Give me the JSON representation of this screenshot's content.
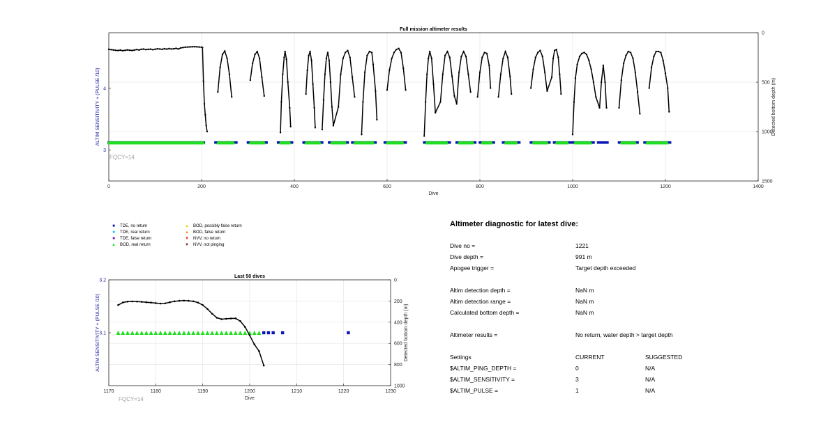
{
  "chart_data": [
    {
      "type": "scatter",
      "title": "Full mission altimeter results",
      "xlabel": "Dive",
      "ylabel_left": "ALTIM SENSITIVITY + (PULSE /10)",
      "ylabel_right": "Detected bottom depth (m)",
      "annotation": "FQCY=14",
      "xlim": [
        0,
        1400
      ],
      "ylim_left": [
        2.5,
        4.9
      ],
      "ylim_right": [
        1500,
        0
      ],
      "xticks": [
        0,
        200,
        400,
        600,
        800,
        1000,
        1200,
        1400
      ],
      "yticks_left": [
        3,
        4
      ],
      "yticks_right": [
        0,
        500,
        1000,
        1500
      ],
      "grid": true,
      "bottom_depth_trace": [
        [
          0,
          168
        ],
        [
          5,
          172
        ],
        [
          10,
          175
        ],
        [
          15,
          178
        ],
        [
          20,
          180
        ],
        [
          25,
          176
        ],
        [
          30,
          182
        ],
        [
          35,
          178
        ],
        [
          40,
          174
        ],
        [
          45,
          177
        ],
        [
          50,
          180
        ],
        [
          55,
          176
        ],
        [
          60,
          170
        ],
        [
          65,
          175
        ],
        [
          70,
          168
        ],
        [
          75,
          165
        ],
        [
          80,
          171
        ],
        [
          85,
          168
        ],
        [
          90,
          166
        ],
        [
          95,
          172
        ],
        [
          100,
          167
        ],
        [
          105,
          163
        ],
        [
          110,
          165
        ],
        [
          115,
          168
        ],
        [
          120,
          162
        ],
        [
          125,
          166
        ],
        [
          130,
          161
        ],
        [
          135,
          165
        ],
        [
          140,
          163
        ],
        [
          145,
          158
        ],
        [
          150,
          165
        ],
        [
          155,
          154
        ],
        [
          160,
          150
        ],
        [
          165,
          146
        ],
        [
          170,
          145
        ],
        [
          175,
          144
        ],
        [
          180,
          142
        ],
        [
          185,
          142
        ],
        [
          190,
          143
        ],
        [
          195,
          145
        ],
        [
          200,
          146
        ],
        [
          202,
          150
        ],
        [
          204,
          490
        ],
        [
          206,
          720
        ],
        [
          208,
          830
        ],
        [
          210,
          940
        ],
        [
          212,
          1000
        ],
        [
          235,
          600
        ],
        [
          240,
          350
        ],
        [
          245,
          220
        ],
        [
          250,
          185
        ],
        [
          255,
          260
        ],
        [
          260,
          420
        ],
        [
          265,
          650
        ],
        [
          305,
          480
        ],
        [
          310,
          310
        ],
        [
          315,
          220
        ],
        [
          320,
          190
        ],
        [
          325,
          260
        ],
        [
          330,
          450
        ],
        [
          335,
          640
        ],
        [
          370,
          1010
        ],
        [
          372,
          700
        ],
        [
          375,
          420
        ],
        [
          378,
          250
        ],
        [
          380,
          190
        ],
        [
          383,
          270
        ],
        [
          386,
          500
        ],
        [
          390,
          760
        ],
        [
          392,
          950
        ],
        [
          425,
          620
        ],
        [
          428,
          380
        ],
        [
          431,
          230
        ],
        [
          434,
          190
        ],
        [
          437,
          280
        ],
        [
          440,
          520
        ],
        [
          443,
          760
        ],
        [
          445,
          960
        ],
        [
          460,
          980
        ],
        [
          463,
          680
        ],
        [
          466,
          420
        ],
        [
          469,
          260
        ],
        [
          472,
          200
        ],
        [
          475,
          280
        ],
        [
          478,
          500
        ],
        [
          481,
          750
        ],
        [
          484,
          940
        ],
        [
          495,
          750
        ],
        [
          500,
          420
        ],
        [
          505,
          260
        ],
        [
          510,
          200
        ],
        [
          515,
          180
        ],
        [
          520,
          250
        ],
        [
          525,
          450
        ],
        [
          530,
          650
        ],
        [
          545,
          1030
        ],
        [
          548,
          700
        ],
        [
          552,
          400
        ],
        [
          557,
          230
        ],
        [
          562,
          190
        ],
        [
          567,
          200
        ],
        [
          570,
          320
        ],
        [
          575,
          590
        ],
        [
          578,
          880
        ],
        [
          600,
          580
        ],
        [
          605,
          380
        ],
        [
          610,
          260
        ],
        [
          615,
          200
        ],
        [
          620,
          170
        ],
        [
          625,
          160
        ],
        [
          630,
          200
        ],
        [
          635,
          360
        ],
        [
          640,
          580
        ],
        [
          680,
          1045
        ],
        [
          683,
          700
        ],
        [
          686,
          420
        ],
        [
          689,
          260
        ],
        [
          692,
          190
        ],
        [
          696,
          260
        ],
        [
          700,
          520
        ],
        [
          704,
          810
        ],
        [
          715,
          700
        ],
        [
          720,
          420
        ],
        [
          725,
          230
        ],
        [
          730,
          190
        ],
        [
          735,
          250
        ],
        [
          740,
          440
        ],
        [
          745,
          640
        ],
        [
          750,
          720
        ],
        [
          755,
          400
        ],
        [
          760,
          240
        ],
        [
          765,
          190
        ],
        [
          770,
          240
        ],
        [
          775,
          420
        ],
        [
          780,
          600
        ],
        [
          795,
          650
        ],
        [
          800,
          400
        ],
        [
          805,
          250
        ],
        [
          810,
          200
        ],
        [
          815,
          210
        ],
        [
          820,
          330
        ],
        [
          823,
          560
        ],
        [
          840,
          650
        ],
        [
          845,
          420
        ],
        [
          850,
          260
        ],
        [
          855,
          190
        ],
        [
          860,
          250
        ],
        [
          865,
          440
        ],
        [
          868,
          620
        ],
        [
          910,
          560
        ],
        [
          915,
          370
        ],
        [
          920,
          250
        ],
        [
          925,
          200
        ],
        [
          930,
          180
        ],
        [
          935,
          240
        ],
        [
          940,
          400
        ],
        [
          945,
          590
        ],
        [
          955,
          450
        ],
        [
          958,
          260
        ],
        [
          961,
          180
        ],
        [
          965,
          170
        ],
        [
          969,
          250
        ],
        [
          972,
          420
        ],
        [
          975,
          620
        ],
        [
          1000,
          1030
        ],
        [
          1003,
          700
        ],
        [
          1006,
          460
        ],
        [
          1010,
          320
        ],
        [
          1015,
          240
        ],
        [
          1020,
          210
        ],
        [
          1025,
          200
        ],
        [
          1030,
          220
        ],
        [
          1035,
          280
        ],
        [
          1040,
          370
        ],
        [
          1045,
          500
        ],
        [
          1050,
          650
        ],
        [
          1058,
          760
        ],
        [
          1062,
          500
        ],
        [
          1066,
          330
        ],
        [
          1070,
          500
        ],
        [
          1073,
          760
        ],
        [
          1100,
          760
        ],
        [
          1105,
          480
        ],
        [
          1110,
          310
        ],
        [
          1115,
          230
        ],
        [
          1120,
          190
        ],
        [
          1125,
          200
        ],
        [
          1130,
          260
        ],
        [
          1135,
          400
        ],
        [
          1140,
          600
        ],
        [
          1145,
          820
        ],
        [
          1165,
          560
        ],
        [
          1170,
          350
        ],
        [
          1175,
          240
        ],
        [
          1180,
          190
        ],
        [
          1185,
          190
        ],
        [
          1190,
          200
        ],
        [
          1195,
          280
        ],
        [
          1200,
          410
        ],
        [
          1205,
          560
        ],
        [
          1208,
          800
        ]
      ],
      "tde_no_return_ranges": [
        [
          0,
          205
        ],
        [
          230,
          275
        ],
        [
          300,
          340
        ],
        [
          365,
          395
        ],
        [
          420,
          460
        ],
        [
          475,
          515
        ],
        [
          525,
          575
        ],
        [
          595,
          640
        ],
        [
          680,
          735
        ],
        [
          750,
          790
        ],
        [
          800,
          830
        ],
        [
          850,
          885
        ],
        [
          910,
          950
        ],
        [
          960,
          995
        ],
        [
          1000,
          1045
        ],
        [
          1055,
          1075
        ],
        [
          1100,
          1140
        ],
        [
          1155,
          1210
        ]
      ],
      "bod_real_return_ranges": [
        [
          0,
          205
        ],
        [
          235,
          270
        ],
        [
          305,
          335
        ],
        [
          370,
          390
        ],
        [
          425,
          455
        ],
        [
          480,
          510
        ],
        [
          530,
          570
        ],
        [
          600,
          635
        ],
        [
          685,
          730
        ],
        [
          755,
          785
        ],
        [
          805,
          825
        ],
        [
          855,
          880
        ],
        [
          915,
          945
        ],
        [
          965,
          990
        ],
        [
          1005,
          1040
        ],
        [
          1105,
          1135
        ],
        [
          1160,
          1205
        ]
      ]
    },
    {
      "type": "scatter",
      "title": "Last 50 dives",
      "xlabel": "Dive",
      "ylabel_left": "ALTIM SENSITIVITY + (PULSE /10)",
      "ylabel_right": "Detected bottom depth (m)",
      "annotation": "FQCY=14",
      "xlim": [
        1170,
        1230
      ],
      "ylim_left": [
        3.0,
        3.2
      ],
      "ylim_right": [
        1000,
        0
      ],
      "xticks": [
        1170,
        1180,
        1190,
        1200,
        1210,
        1220,
        1230
      ],
      "yticks_left": [
        3.1,
        3.2
      ],
      "yticks_right": [
        0,
        200,
        400,
        600,
        800,
        1000
      ],
      "grid": true,
      "bottom_depth_trace": [
        [
          1172,
          238
        ],
        [
          1173,
          214
        ],
        [
          1174,
          206
        ],
        [
          1175,
          204
        ],
        [
          1176,
          205
        ],
        [
          1177,
          208
        ],
        [
          1178,
          212
        ],
        [
          1179,
          215
        ],
        [
          1180,
          220
        ],
        [
          1181,
          224
        ],
        [
          1182,
          222
        ],
        [
          1183,
          212
        ],
        [
          1184,
          203
        ],
        [
          1185,
          198
        ],
        [
          1186,
          196
        ],
        [
          1187,
          198
        ],
        [
          1188,
          203
        ],
        [
          1189,
          215
        ],
        [
          1190,
          238
        ],
        [
          1191,
          275
        ],
        [
          1192,
          320
        ],
        [
          1193,
          358
        ],
        [
          1194,
          372
        ],
        [
          1195,
          368
        ],
        [
          1196,
          365
        ],
        [
          1197,
          364
        ],
        [
          1198,
          390
        ],
        [
          1199,
          445
        ],
        [
          1200,
          525
        ],
        [
          1201,
          610
        ],
        [
          1202,
          675
        ],
        [
          1203,
          810
        ]
      ],
      "bod_real_return": [
        1172,
        1173,
        1174,
        1175,
        1176,
        1177,
        1178,
        1179,
        1180,
        1181,
        1182,
        1183,
        1184,
        1185,
        1186,
        1187,
        1188,
        1189,
        1190,
        1191,
        1192,
        1193,
        1194,
        1195,
        1196,
        1197,
        1198,
        1199,
        1200,
        1201,
        1202
      ],
      "bod_level": 3.1,
      "tde_no_return": [
        1203,
        1204,
        1205,
        1207,
        1221
      ],
      "tde_level": 3.1
    }
  ],
  "legend": {
    "items": [
      {
        "label": "TDE, no return",
        "symbol": "■",
        "color": "#0a14b4"
      },
      {
        "label": "TDE, real return",
        "symbol": "■",
        "color": "#2fc4e8"
      },
      {
        "label": "TDE, false return",
        "symbol": "■",
        "color": "#7a1ea8"
      },
      {
        "label": "BOD, real return",
        "symbol": "▲",
        "color": "#22dd22"
      },
      {
        "label": "BOD, possibly false return",
        "symbol": "▲",
        "color": "#f2d21c"
      },
      {
        "label": "BOD, false return",
        "symbol": "▲",
        "color": "#f28a10"
      },
      {
        "label": "NVV, no return",
        "symbol": "▼",
        "color": "#e02010"
      },
      {
        "label": "NVV, not pinging",
        "symbol": "▼",
        "color": "#6a1008"
      }
    ]
  },
  "diagnostic": {
    "title": "Altimeter diagnostic for latest dive:",
    "rows": [
      {
        "label": "Dive no =",
        "value": "1221"
      },
      {
        "label": "Dive depth =",
        "value": "991 m"
      },
      {
        "label": "Apogee trigger =",
        "value": "Target depth exceeded"
      },
      {
        "label": "Altim detection depth =",
        "value": "NaN m"
      },
      {
        "label": "Altim detection range =",
        "value": "NaN m"
      },
      {
        "label": "Calculated bottom depth =",
        "value": "NaN m"
      },
      {
        "label": "Altimeter results =",
        "value": "No return, water depth > target depth"
      }
    ],
    "settings": {
      "header": [
        "Settings",
        "CURRENT",
        "SUGGESTED"
      ],
      "rows": [
        [
          "$ALTIM_PING_DEPTH =",
          "0",
          "N/A"
        ],
        [
          "$ALTIM_SENSITIVITY =",
          "3",
          "N/A"
        ],
        [
          "$ALTIM_PULSE =",
          "1",
          "N/A"
        ]
      ]
    }
  },
  "colors": {
    "axis": "#262626",
    "grid": "#e6e6e6",
    "left_axis_label": "#2020a0",
    "annotation": "#a0a0a0",
    "tde_no_return": "#0a14b4",
    "bod_real_return": "#22dd22",
    "trace": "#000000"
  }
}
